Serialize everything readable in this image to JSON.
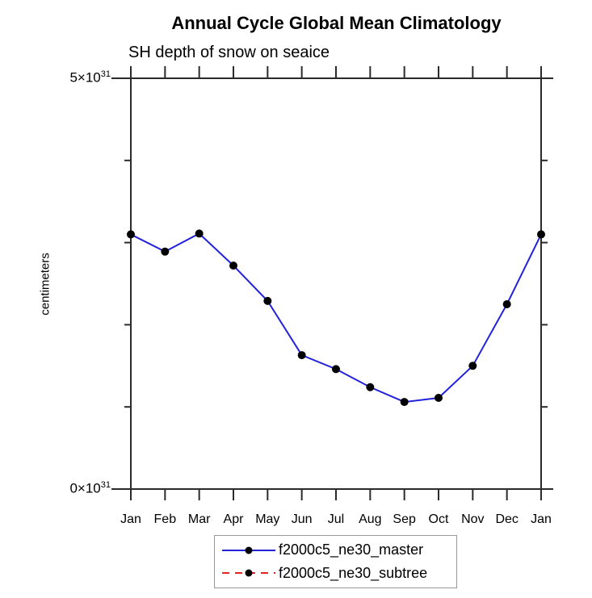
{
  "title": "Annual Cycle Global Mean Climatology",
  "subtitle": "SH depth of snow on seaice",
  "y_axis": {
    "label": "centimeters",
    "ticks": [
      {
        "base": "0×10",
        "exponent": "31",
        "value": 0
      },
      {
        "base": "5×10",
        "exponent": "31",
        "value": 5e+31
      }
    ]
  },
  "legend": [
    {
      "label": "f2000c5_ne30_master",
      "color": "#2222dd",
      "line_style": "solid",
      "marker": "filled-circle",
      "marker_color": "#000000"
    },
    {
      "label": "f2000c5_ne30_subtree",
      "color": "#e62222",
      "line_style": "dashed",
      "marker": "filled-circle",
      "marker_color": "#000000"
    }
  ],
  "chart_data": {
    "type": "line",
    "title": "Annual Cycle Global Mean Climatology",
    "subtitle": "SH depth of snow on seaice",
    "xlabel": "",
    "ylabel": "centimeters",
    "categories": [
      "Jan",
      "Feb",
      "Mar",
      "Apr",
      "May",
      "Jun",
      "Jul",
      "Aug",
      "Sep",
      "Oct",
      "Nov",
      "Dec",
      "Jan"
    ],
    "ylim": [
      0,
      5e+31
    ],
    "y_major_tick_values": [
      0,
      5e+31
    ],
    "y_minor_tick_step": 1e+31,
    "grid": false,
    "legend_position": "bottom-center",
    "series": [
      {
        "name": "f2000c5_ne30_master",
        "color": "#2222dd",
        "line_style": "solid",
        "marker": "filled-circle",
        "marker_color": "#000000",
        "values": [
          3.1e+31,
          2.89e+31,
          3.11e+31,
          2.72e+31,
          2.29e+31,
          1.63e+31,
          1.46e+31,
          1.24e+31,
          1.06e+31,
          1.11e+31,
          1.5e+31,
          2.25e+31,
          3.1e+31
        ]
      }
    ]
  }
}
